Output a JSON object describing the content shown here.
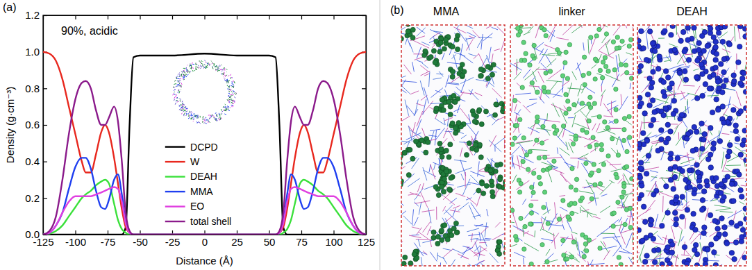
{
  "chart_data": {
    "type": "line",
    "panel_label": "(a)",
    "annotation": "90%, acidic",
    "xlabel": "Distance (Å)",
    "ylabel": "Density (g·cm⁻³)",
    "xlim": [
      -125,
      125
    ],
    "ylim": [
      0,
      1.2
    ],
    "xticks": [
      -125,
      -100,
      -75,
      -50,
      -25,
      0,
      25,
      50,
      75,
      100,
      125
    ],
    "yticks": [
      {
        "value": 0,
        "label": "0.0"
      },
      {
        "value": 0.2,
        "label": "0.2"
      },
      {
        "value": 0.4,
        "label": "0.4"
      },
      {
        "value": 0.6,
        "label": "0.6"
      },
      {
        "value": 0.8,
        "label": "0.8"
      },
      {
        "value": 1.0,
        "label": "1.0"
      },
      {
        "value": 1.2,
        "label": "1.2"
      }
    ],
    "legend": "lower center",
    "x": [
      -125,
      -120,
      -115,
      -110,
      -105,
      -100,
      -95,
      -92,
      -88,
      -84,
      -80,
      -77,
      -74,
      -70,
      -67,
      -64,
      -61,
      -58,
      -55,
      -50,
      -25,
      0,
      25,
      50,
      55,
      58,
      61,
      64,
      67,
      70,
      74,
      77,
      80,
      84,
      88,
      92,
      95,
      100,
      105,
      110,
      115,
      120,
      125
    ],
    "series": [
      {
        "name": "DCPD",
        "color": "#000000",
        "values": [
          0,
          0,
          0,
          0,
          0,
          0,
          0,
          0,
          0,
          0,
          0,
          0,
          0,
          0,
          0,
          0,
          0.04,
          0.6,
          0.97,
          0.98,
          0.98,
          0.99,
          0.98,
          0.98,
          0.97,
          0.6,
          0.04,
          0,
          0,
          0,
          0,
          0,
          0,
          0,
          0,
          0,
          0,
          0,
          0,
          0,
          0,
          0,
          0
        ]
      },
      {
        "name": "W",
        "color": "#e8281e",
        "values": [
          1.0,
          0.99,
          0.95,
          0.85,
          0.7,
          0.55,
          0.4,
          0.34,
          0.34,
          0.44,
          0.56,
          0.6,
          0.56,
          0.42,
          0.28,
          0.14,
          0.04,
          0.01,
          0,
          0,
          0,
          0,
          0,
          0,
          0,
          0.01,
          0.04,
          0.14,
          0.28,
          0.42,
          0.56,
          0.6,
          0.56,
          0.44,
          0.34,
          0.34,
          0.4,
          0.55,
          0.7,
          0.85,
          0.95,
          0.99,
          1.0
        ]
      },
      {
        "name": "DEAH",
        "color": "#3be03b",
        "values": [
          0,
          0.005,
          0.02,
          0.05,
          0.1,
          0.15,
          0.2,
          0.22,
          0.24,
          0.27,
          0.29,
          0.3,
          0.28,
          0.17,
          0.08,
          0.03,
          0.01,
          0,
          0,
          0,
          0,
          0,
          0,
          0,
          0,
          0,
          0.01,
          0.03,
          0.08,
          0.17,
          0.28,
          0.3,
          0.29,
          0.27,
          0.24,
          0.22,
          0.2,
          0.15,
          0.1,
          0.05,
          0.02,
          0.005,
          0
        ]
      },
      {
        "name": "MMA",
        "color": "#1f3ff0",
        "values": [
          0,
          0.01,
          0.05,
          0.12,
          0.25,
          0.37,
          0.42,
          0.42,
          0.36,
          0.24,
          0.15,
          0.14,
          0.19,
          0.3,
          0.33,
          0.22,
          0.07,
          0.01,
          0,
          0,
          0,
          0,
          0,
          0,
          0,
          0.01,
          0.07,
          0.22,
          0.33,
          0.3,
          0.19,
          0.14,
          0.15,
          0.24,
          0.36,
          0.42,
          0.42,
          0.37,
          0.25,
          0.12,
          0.05,
          0.01,
          0
        ]
      },
      {
        "name": "EO",
        "color": "#e040e0",
        "values": [
          0,
          0.01,
          0.05,
          0.12,
          0.18,
          0.21,
          0.21,
          0.21,
          0.21,
          0.22,
          0.23,
          0.24,
          0.25,
          0.26,
          0.25,
          0.18,
          0.06,
          0.01,
          0,
          0,
          0,
          0,
          0,
          0,
          0,
          0.01,
          0.06,
          0.18,
          0.25,
          0.26,
          0.25,
          0.24,
          0.23,
          0.22,
          0.21,
          0.21,
          0.21,
          0.21,
          0.18,
          0.12,
          0.05,
          0.01,
          0
        ]
      },
      {
        "name": "total shell",
        "color": "#8b1a8b",
        "values": [
          0,
          0.02,
          0.1,
          0.3,
          0.55,
          0.74,
          0.83,
          0.84,
          0.8,
          0.68,
          0.6,
          0.6,
          0.64,
          0.7,
          0.62,
          0.4,
          0.12,
          0.02,
          0,
          0,
          0,
          0,
          0,
          0,
          0,
          0.02,
          0.12,
          0.4,
          0.62,
          0.7,
          0.64,
          0.6,
          0.6,
          0.68,
          0.8,
          0.84,
          0.83,
          0.74,
          0.55,
          0.3,
          0.1,
          0.02,
          0
        ]
      }
    ]
  },
  "snapshots": {
    "panel_label": "(b)",
    "titles": [
      "MMA",
      "linker",
      "DEAH"
    ]
  }
}
